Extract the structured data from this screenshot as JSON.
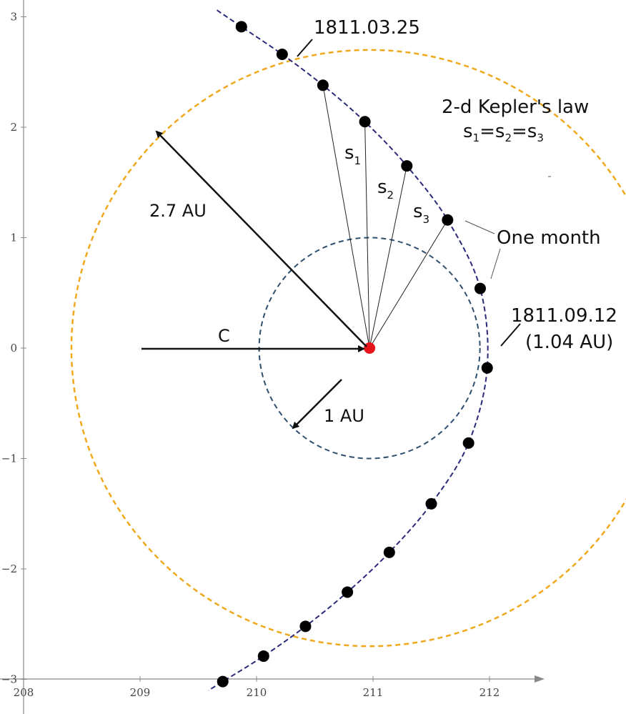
{
  "chart_data": {
    "type": "scatter",
    "x_ticks": [
      "208",
      "209",
      "210",
      "211",
      "212"
    ],
    "y_ticks": [
      "3",
      "2",
      "1",
      "0",
      "−1",
      "−2",
      "−3"
    ],
    "xlim": [
      208,
      212.5
    ],
    "ylim": [
      -3,
      3.1
    ],
    "grid": false,
    "sun": {
      "x": 210.97,
      "y": 0.0,
      "color": "#e8141c"
    },
    "earth_orbit": {
      "cx": 210.97,
      "cy": 0.0,
      "radius_au": 1.0,
      "color": "#2f4f6f"
    },
    "outer_circle": {
      "cx": 210.97,
      "cy": 0.0,
      "radius_au": 2.7,
      "color": "#f0a81c"
    },
    "comet_orbit_color": "#2a2a7a",
    "comet_points": [
      {
        "x": 209.87,
        "y": 2.91
      },
      {
        "x": 210.22,
        "y": 2.66
      },
      {
        "x": 210.57,
        "y": 2.38
      },
      {
        "x": 210.93,
        "y": 2.05
      },
      {
        "x": 211.29,
        "y": 1.65
      },
      {
        "x": 211.64,
        "y": 1.16
      },
      {
        "x": 211.92,
        "y": 0.54
      },
      {
        "x": 211.98,
        "y": -0.18
      },
      {
        "x": 211.82,
        "y": -0.86
      },
      {
        "x": 211.5,
        "y": -1.41
      },
      {
        "x": 211.14,
        "y": -1.85
      },
      {
        "x": 210.78,
        "y": -2.21
      },
      {
        "x": 210.42,
        "y": -2.52
      },
      {
        "x": 210.06,
        "y": -2.79
      },
      {
        "x": 209.71,
        "y": -3.02
      }
    ]
  },
  "labels": {
    "date_start": "1811.03.25",
    "date_peri": "1811.09.12",
    "peri_dist": "(1.04 AU)",
    "kepler_title": "2-d Kepler's law",
    "kepler_eq_s": "s",
    "kepler_sub_1": "1",
    "kepler_sub_2": "2",
    "kepler_sub_3": "3",
    "kepler_equals": "=",
    "one_month": "One month",
    "radius_outer": "2.7 AU",
    "radius_earth": "1 AU",
    "c_label": "C",
    "s_letter": "s",
    "s1_sub": "1",
    "s2_sub": "2",
    "s3_sub": "3"
  }
}
